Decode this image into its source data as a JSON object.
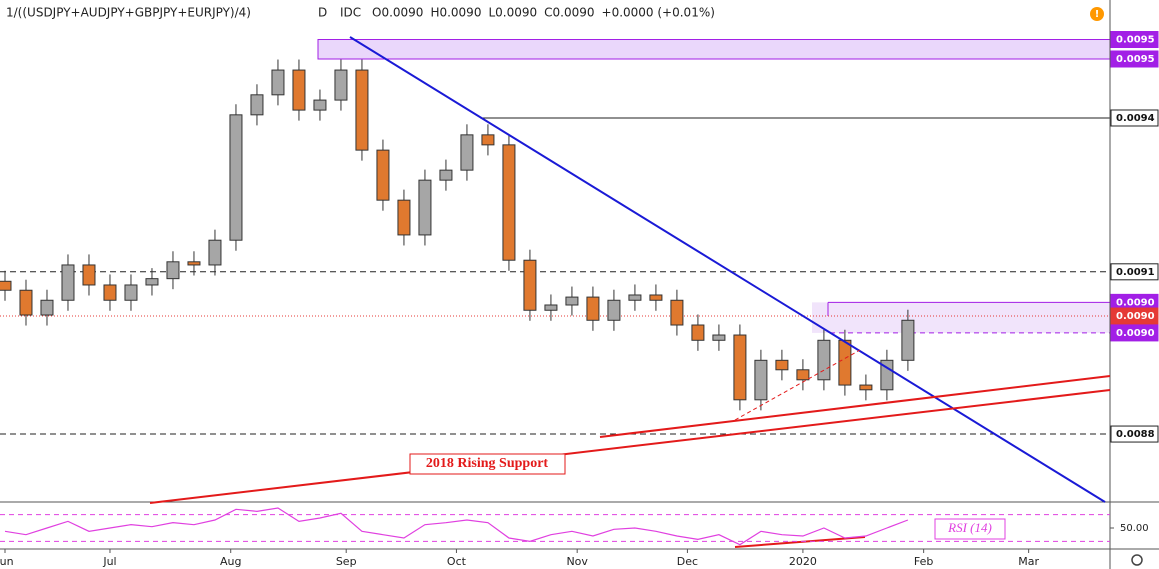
{
  "chart_data": {
    "type": "candlestick",
    "title": "1/((USDJPY+AUDJPY+GBPJPY+EURJPY)/4)",
    "interval": "D",
    "source": "IDC",
    "ohlc_legend": [
      "O0.0090",
      "H0.0090",
      "L0.0090",
      "C0.0090",
      "+0.0000 (+0.01%)"
    ],
    "annotation": "2018 Rising Support",
    "up_color": "#a6a6a6",
    "down_color": "#e0792f",
    "xlim": [
      -0.95,
      210.5
    ],
    "xticks": [
      {
        "value": 0,
        "label": "Jun"
      },
      {
        "value": 20,
        "label": "Jul"
      },
      {
        "value": 43,
        "label": "Aug"
      },
      {
        "value": 65,
        "label": "Sep"
      },
      {
        "value": 86,
        "label": "Oct"
      },
      {
        "value": 109,
        "label": "Nov"
      },
      {
        "value": 130,
        "label": "Dec"
      },
      {
        "value": 152,
        "label": "2020"
      },
      {
        "value": 175,
        "label": "Feb"
      },
      {
        "value": 195,
        "label": "Mar"
      }
    ],
    "ylim": [
      0.008671,
      0.009624
    ],
    "price_levels": [
      {
        "value": 0.009549,
        "label": "0.0095",
        "color": "#a21fe6"
      },
      {
        "value": 0.009512,
        "label": "0.0095",
        "color": "#a21fe6"
      },
      {
        "value": 0.0094,
        "label": "0.0094",
        "color": "#ffffff"
      },
      {
        "value": 0.009108,
        "label": "0.0091",
        "color": "#ffffff"
      },
      {
        "value": 0.00905,
        "label": "0.0090",
        "color": "#a21fe6"
      },
      {
        "value": 0.009024,
        "label": "0.0090",
        "color": "#e53935"
      },
      {
        "value": 0.008992,
        "label": "0.0090",
        "color": "#a21fe6"
      },
      {
        "value": 0.0088,
        "label": "0.0088",
        "color": "#ffffff"
      }
    ],
    "x": [
      0,
      4,
      8,
      12,
      16,
      20,
      24,
      28,
      32,
      36,
      40,
      44,
      48,
      52,
      56,
      60,
      64,
      68,
      72,
      76,
      80,
      84,
      88,
      92,
      96,
      100,
      104,
      108,
      112,
      116,
      120,
      124,
      128,
      132,
      136,
      140,
      144,
      148,
      152,
      156,
      160,
      164,
      168,
      172
    ],
    "open": [
      0.00909,
      0.009073,
      0.009026,
      0.009054,
      0.009121,
      0.009083,
      0.009054,
      0.009083,
      0.009095,
      0.009127,
      0.009121,
      0.009168,
      0.009406,
      0.009444,
      0.009491,
      0.009415,
      0.009434,
      0.009491,
      0.009339,
      0.009244,
      0.009178,
      0.009282,
      0.009301,
      0.009368,
      0.009349,
      0.00913,
      0.009035,
      0.009045,
      0.00906,
      0.009016,
      0.009054,
      0.009064,
      0.009054,
      0.009007,
      0.008978,
      0.008988,
      0.008865,
      0.00894,
      0.008922,
      0.008903,
      0.008978,
      0.008893,
      0.008884,
      0.00894
    ],
    "high": [
      0.00911,
      0.009093,
      0.009074,
      0.009141,
      0.009141,
      0.009103,
      0.009103,
      0.009115,
      0.009147,
      0.009147,
      0.009188,
      0.009426,
      0.009464,
      0.009511,
      0.009511,
      0.009454,
      0.009511,
      0.009511,
      0.009359,
      0.009264,
      0.009302,
      0.009321,
      0.009388,
      0.009388,
      0.009369,
      0.00915,
      0.009065,
      0.00908,
      0.00908,
      0.009074,
      0.009084,
      0.009084,
      0.009074,
      0.009027,
      0.009008,
      0.009008,
      0.00896,
      0.00896,
      0.008942,
      0.008998,
      0.008998,
      0.008913,
      0.00896,
      0.009036
    ],
    "low": [
      0.009053,
      0.009006,
      0.009006,
      0.009034,
      0.009063,
      0.009034,
      0.009034,
      0.009063,
      0.009075,
      0.009101,
      0.009101,
      0.009148,
      0.009386,
      0.009424,
      0.009395,
      0.009395,
      0.009414,
      0.009319,
      0.009224,
      0.009158,
      0.009158,
      0.009262,
      0.009281,
      0.009329,
      0.00911,
      0.009015,
      0.009015,
      0.009025,
      0.008996,
      0.008996,
      0.009034,
      0.009034,
      0.008987,
      0.008958,
      0.008958,
      0.008845,
      0.008845,
      0.008902,
      0.008883,
      0.008883,
      0.008873,
      0.008864,
      0.008864,
      0.00892
    ],
    "close": [
      0.009073,
      0.009026,
      0.009054,
      0.009121,
      0.009083,
      0.009054,
      0.009083,
      0.009095,
      0.009127,
      0.009121,
      0.009168,
      0.009406,
      0.009444,
      0.009491,
      0.009415,
      0.009434,
      0.009491,
      0.009339,
      0.009244,
      0.009178,
      0.009282,
      0.009301,
      0.009368,
      0.009349,
      0.00913,
      0.009035,
      0.009045,
      0.00906,
      0.009016,
      0.009054,
      0.009064,
      0.009054,
      0.009007,
      0.008978,
      0.008988,
      0.008865,
      0.00894,
      0.008922,
      0.008903,
      0.008978,
      0.008893,
      0.008884,
      0.00894,
      0.009016
    ],
    "rsi_name": "RSI (14)",
    "rsi_color": "#e040e0",
    "rsi_ylim": [
      20,
      80
    ],
    "rsi_levels": [
      30,
      70
    ],
    "rsi_yticks": [
      {
        "value": 50,
        "label": "50.00"
      }
    ],
    "rsi": [
      45,
      40,
      50,
      60,
      45,
      50,
      55,
      52,
      58,
      55,
      62,
      78,
      75,
      80,
      60,
      65,
      72,
      45,
      40,
      35,
      55,
      58,
      62,
      58,
      35,
      30,
      40,
      45,
      38,
      48,
      50,
      45,
      38,
      33,
      40,
      25,
      45,
      40,
      38,
      50,
      35,
      38,
      50,
      62
    ]
  }
}
